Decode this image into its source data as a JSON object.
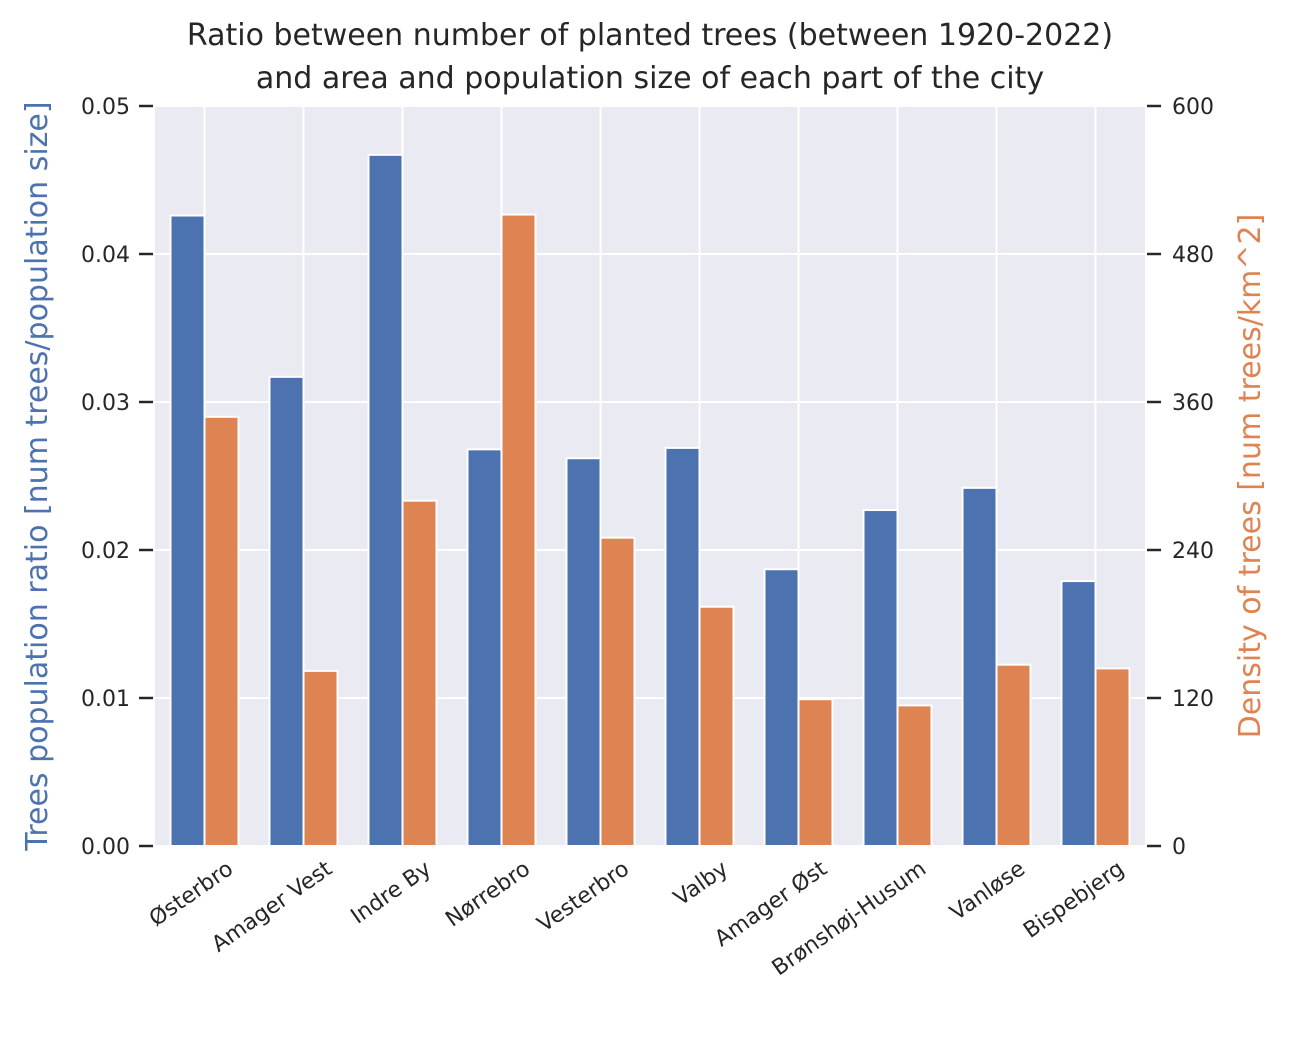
{
  "chart_data": {
    "type": "bar",
    "title": [
      "Ratio between number of planted trees (between 1920-2022)",
      "and area and population size of each part of the city"
    ],
    "categories": [
      "Østerbro",
      "Amager Vest",
      "Indre By",
      "Nørrebro",
      "Vesterbro",
      "Valby",
      "Amager Øst",
      "Brønshøj-Husum",
      "Vanløse",
      "Bispebjerg"
    ],
    "series": [
      {
        "name": "Trees population ratio [num trees/population size]",
        "axis": "left",
        "color": "#4c72b0",
        "values": [
          0.0426,
          0.0317,
          0.0467,
          0.0268,
          0.0262,
          0.0269,
          0.0187,
          0.0227,
          0.0242,
          0.0179
        ]
      },
      {
        "name": "Density of trees [num trees/km^2]",
        "axis": "right",
        "color": "#dd8452",
        "values": [
          348,
          142,
          280,
          512,
          250,
          194,
          119,
          114,
          147,
          144
        ]
      }
    ],
    "ylabel_left": "Trees population ratio [num trees/population size]",
    "ylabel_right": "Density of trees [num trees/km^2]",
    "ylim_left": [
      0,
      0.05
    ],
    "ylim_right": [
      0,
      600
    ],
    "yticks_left": [
      "0.00",
      "0.01",
      "0.02",
      "0.03",
      "0.04",
      "0.05"
    ],
    "yticks_right": [
      "0",
      "120",
      "240",
      "360",
      "480",
      "600"
    ],
    "grid": true,
    "background": "#eaeaf2",
    "legend": "none"
  }
}
